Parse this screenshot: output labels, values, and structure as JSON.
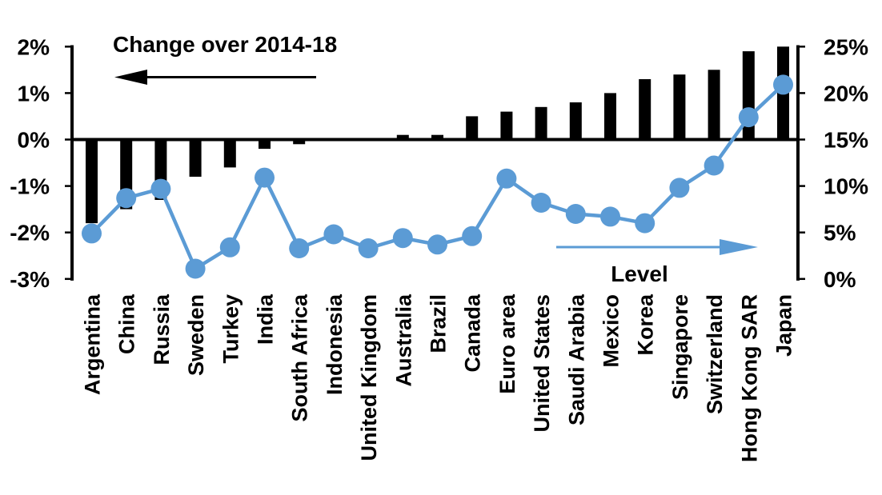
{
  "chart_data": {
    "type": "bar+line",
    "title": "",
    "categories": [
      "Argentina",
      "China",
      "Russia",
      "Sweden",
      "Turkey",
      "India",
      "South Africa",
      "Indonesia",
      "United Kingdom",
      "Australia",
      "Brazil",
      "Canada",
      "Euro area",
      "United States",
      "Saudi Arabia",
      "Mexico",
      "Korea",
      "Singapore",
      "Switzerland",
      "Hong Kong SAR",
      "Japan"
    ],
    "series": [
      {
        "name": "Change over 2014-18",
        "type": "bar",
        "axis": "left",
        "unit": "%",
        "color": "#000000",
        "values": [
          -1.8,
          -1.5,
          -1.3,
          -0.8,
          -0.6,
          -0.2,
          -0.1,
          0.0,
          0.0,
          0.1,
          0.1,
          0.5,
          0.6,
          0.7,
          0.8,
          1.0,
          1.3,
          1.4,
          1.5,
          1.9,
          2.0
        ]
      },
      {
        "name": "Level",
        "type": "line",
        "axis": "right",
        "unit": "%",
        "color": "#5B9BD5",
        "values": [
          4.9,
          8.7,
          9.7,
          1.1,
          3.4,
          10.9,
          3.3,
          4.8,
          3.3,
          4.4,
          3.7,
          4.6,
          10.8,
          8.2,
          7.0,
          6.7,
          6.0,
          9.8,
          12.2,
          17.4,
          20.9
        ]
      }
    ],
    "left_axis": {
      "min": -3,
      "max": 2,
      "tick_step": 1,
      "tick_labels": [
        "2%",
        "1%",
        "0%",
        "-1%",
        "-2%",
        "-3%"
      ]
    },
    "right_axis": {
      "min": 0,
      "max": 25,
      "tick_step": 5,
      "tick_labels": [
        "25%",
        "20%",
        "15%",
        "10%",
        "5%",
        "0%"
      ]
    },
    "grid": false,
    "legend_position": "in-plot arrow annotations",
    "annotations": [
      {
        "text": "Change over 2014-18",
        "arrow_direction": "left",
        "color": "#000000",
        "refers_to": "bars / left axis"
      },
      {
        "text": "Level",
        "arrow_direction": "right",
        "color": "#5B9BD5",
        "refers_to": "dots / right axis"
      }
    ],
    "background": "#FFFFFF"
  }
}
